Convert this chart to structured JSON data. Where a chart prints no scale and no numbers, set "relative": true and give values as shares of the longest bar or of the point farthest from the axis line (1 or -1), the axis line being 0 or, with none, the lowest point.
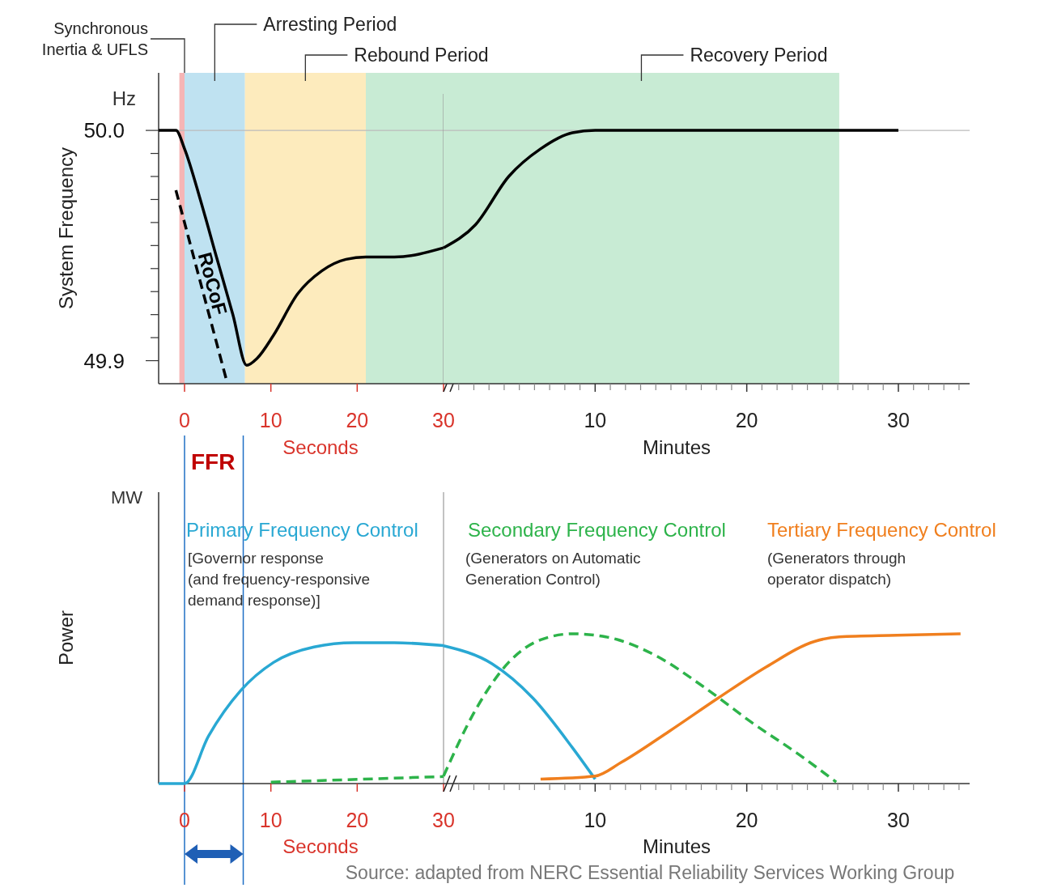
{
  "chart_data": [
    {
      "type": "line",
      "ylabel": "System Frequency",
      "annotations": [
        "Hz",
        "Seconds"
      ],
      "xlim": [
        -3,
        30
      ],
      "xticks": [
        0,
        10,
        20,
        30
      ],
      "ylim": [
        49.89,
        50.025
      ],
      "yticks": [
        {
          "value": 49.9,
          "label": "49.9"
        },
        {
          "value": 49.91,
          "label": null
        },
        {
          "value": 49.92,
          "label": null
        },
        {
          "value": 49.93,
          "label": null
        },
        {
          "value": 49.94,
          "label": null
        },
        {
          "value": 49.95,
          "label": null
        },
        {
          "value": 49.96,
          "label": null
        },
        {
          "value": 49.97,
          "label": null
        },
        {
          "value": 49.98,
          "label": null
        },
        {
          "value": 49.99,
          "label": null
        },
        {
          "value": 50.0,
          "label": "50.0"
        }
      ],
      "bands": [
        {
          "axis": "x",
          "from": -0.6,
          "to": 0,
          "label": "Synchronous\nInertia & UFLS",
          "color": "#f5b5b5"
        },
        {
          "axis": "x",
          "from": 0,
          "to": 7,
          "label": "Arresting Period",
          "color": "#bfe2f1"
        },
        {
          "axis": "x",
          "from": 7,
          "to": 21,
          "label": "Rebound Period",
          "color": "#fdebbd"
        },
        {
          "axis": "x",
          "from": 21,
          "to": 30,
          "color": "#c8ebd4"
        }
      ],
      "ref_lines": [
        {
          "axis": "y",
          "value": 50.0,
          "color": "#bbbbbb"
        },
        {
          "axis": "x",
          "value": 30,
          "color": "#999999"
        }
      ],
      "series": [
        {
          "color": "#000000",
          "x": [
            -3,
            -1,
            0,
            1.9,
            3.7,
            5.6,
            7.2,
            8.4,
            10.3,
            13.1,
            15.9,
            18.7,
            21,
            24.3,
            30
          ],
          "values": [
            50.0,
            50.0,
            49.992,
            49.969,
            49.945,
            49.92,
            49.898,
            49.901,
            49.911,
            49.929,
            49.939,
            49.944,
            49.945,
            49.945,
            49.949
          ]
        },
        {
          "name": "RoCoF",
          "color": "#000000",
          "line_style": "dashed",
          "x": [
            -1,
            4.9
          ],
          "values": [
            49.974,
            49.891
          ]
        }
      ]
    },
    {
      "type": "line",
      "annotations": [
        "Minutes"
      ],
      "tick_labels": "x",
      "xlim": [
        0,
        34.7
      ],
      "xticks": [
        {
          "value": 1,
          "label": null
        },
        {
          "value": 2,
          "label": null
        },
        {
          "value": 3,
          "label": null
        },
        {
          "value": 4,
          "label": null
        },
        {
          "value": 5,
          "label": null
        },
        {
          "value": 6,
          "label": null
        },
        {
          "value": 7,
          "label": null
        },
        {
          "value": 8,
          "label": null
        },
        {
          "value": 9,
          "label": null
        },
        10,
        {
          "value": 11,
          "label": null
        },
        {
          "value": 12,
          "label": null
        },
        {
          "value": 13,
          "label": null
        },
        {
          "value": 14,
          "label": null
        },
        {
          "value": 15,
          "label": null
        },
        {
          "value": 16,
          "label": null
        },
        {
          "value": 17,
          "label": null
        },
        {
          "value": 18,
          "label": null
        },
        {
          "value": 19,
          "label": null
        },
        20,
        {
          "value": 21,
          "label": null
        },
        {
          "value": 22,
          "label": null
        },
        {
          "value": 23,
          "label": null
        },
        {
          "value": 24,
          "label": null
        },
        {
          "value": 25,
          "label": null
        },
        {
          "value": 26,
          "label": null
        },
        {
          "value": 27,
          "label": null
        },
        {
          "value": 28,
          "label": null
        },
        {
          "value": 29,
          "label": null
        },
        30,
        {
          "value": 31,
          "label": null
        },
        {
          "value": 32,
          "label": null
        },
        {
          "value": 33,
          "label": null
        },
        {
          "value": 34,
          "label": null
        }
      ],
      "ylim": [
        49.89,
        50.025
      ],
      "bands": [
        {
          "axis": "x",
          "from": 0,
          "to": 26.1,
          "label": "Recovery Period",
          "color": "#c8ebd4"
        }
      ],
      "ref_lines": [
        {
          "axis": "y",
          "value": 50.0,
          "color": "#bbbbbb"
        }
      ],
      "series": [
        {
          "color": "#000000",
          "x": [
            0,
            2.1,
            4.3,
            6.4,
            8.5,
            10,
            30
          ],
          "values": [
            49.949,
            49.959,
            49.98,
            49.992,
            49.999,
            50.0,
            50.0
          ]
        }
      ]
    },
    {
      "type": "line",
      "relative": true,
      "ylabel": "Power",
      "annotations": [
        "MW",
        "[Governor response\n(and frequency-responsive\ndemand response)]",
        "Seconds"
      ],
      "xlim": [
        -3,
        30
      ],
      "xticks": [
        0,
        10,
        20,
        30
      ],
      "ref_lines": [
        {
          "axis": "x",
          "value": 0,
          "label": "FFR",
          "color": "#1f6fc5"
        },
        {
          "axis": "x",
          "value": 6.8,
          "color": "#1f6fc5"
        },
        {
          "axis": "x",
          "value": 30,
          "color": "#999999"
        }
      ],
      "series": [
        {
          "name": "Primary Frequency Control",
          "color": "#29a8d3",
          "x": [
            -3,
            0,
            2.8,
            6.5,
            10.3,
            15,
            19.6,
            24.3,
            30
          ],
          "values": [
            0,
            0,
            0.34,
            0.66,
            0.86,
            0.97,
            1.0,
            1.0,
            0.98
          ]
        },
        {
          "color": "#2db34a",
          "line_style": "dashed",
          "x": [
            10,
            30
          ],
          "values": [
            0.01,
            0.05
          ]
        }
      ]
    },
    {
      "type": "line",
      "relative": true,
      "annotations": [
        "(Generators on Automatic\nGeneration Control)",
        "(Generators through\noperator dispatch)",
        "Minutes",
        "Source: adapted from NERC Essential Reliability Services Working Group"
      ],
      "xlim": [
        0,
        34.7
      ],
      "xticks": [
        {
          "value": 1,
          "label": null
        },
        {
          "value": 2,
          "label": null
        },
        {
          "value": 3,
          "label": null
        },
        {
          "value": 4,
          "label": null
        },
        {
          "value": 5,
          "label": null
        },
        {
          "value": 6,
          "label": null
        },
        {
          "value": 7,
          "label": null
        },
        {
          "value": 8,
          "label": null
        },
        {
          "value": 9,
          "label": null
        },
        10,
        {
          "value": 11,
          "label": null
        },
        {
          "value": 12,
          "label": null
        },
        {
          "value": 13,
          "label": null
        },
        {
          "value": 14,
          "label": null
        },
        {
          "value": 15,
          "label": null
        },
        {
          "value": 16,
          "label": null
        },
        {
          "value": 17,
          "label": null
        },
        {
          "value": 18,
          "label": null
        },
        {
          "value": 19,
          "label": null
        },
        20,
        {
          "value": 21,
          "label": null
        },
        {
          "value": 22,
          "label": null
        },
        {
          "value": 23,
          "label": null
        },
        {
          "value": 24,
          "label": null
        },
        {
          "value": 25,
          "label": null
        },
        {
          "value": 26,
          "label": null
        },
        {
          "value": 27,
          "label": null
        },
        {
          "value": 28,
          "label": null
        },
        {
          "value": 29,
          "label": null
        },
        30,
        {
          "value": 31,
          "label": null
        },
        {
          "value": 32,
          "label": null
        },
        {
          "value": 33,
          "label": null
        },
        {
          "value": 34,
          "label": null
        }
      ],
      "series": [
        {
          "color": "#29a8d3",
          "x": [
            0,
            3.2,
            5.9,
            8.5,
            10
          ],
          "values": [
            0.92,
            0.8,
            0.57,
            0.24,
            0.03
          ]
        },
        {
          "name": "Secondary Frequency Control",
          "color": "#2db34a",
          "line_style": "dashed",
          "x": [
            0,
            2.1,
            4.3,
            6.4,
            8.5,
            10.7,
            13.9,
            17.1,
            20.3,
            23.5,
            25.9
          ],
          "values": [
            0.05,
            0.49,
            0.81,
            0.96,
            1.0,
            0.98,
            0.86,
            0.65,
            0.41,
            0.19,
            0.01
          ]
        },
        {
          "name": "Tertiary Frequency Control",
          "color": "#f07f1e",
          "x": [
            6.4,
            10,
            11.7,
            14.9,
            18.1,
            21.3,
            24.5,
            26.1,
            29.9,
            34.1
          ],
          "values": [
            0.03,
            0.05,
            0.14,
            0.35,
            0.57,
            0.78,
            0.95,
            0.98,
            0.99,
            1.0
          ]
        }
      ]
    }
  ]
}
